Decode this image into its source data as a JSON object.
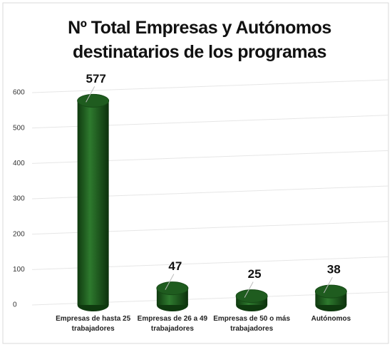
{
  "chart_data": {
    "type": "cylinder-bar",
    "title": "Nº Total Empresas y Autónomos destinatarios de los programas",
    "categories": [
      "Empresas de hasta 25 trabajadores",
      "Empresas de 26 a 49 trabajadores",
      "Empresas de 50 o más trabajadores",
      "Autónomos"
    ],
    "values": [
      577,
      47,
      25,
      38
    ],
    "color": "#1f5c1f",
    "ylim": [
      0,
      600
    ],
    "yticks": [
      0,
      100,
      200,
      300,
      400,
      500,
      600
    ],
    "grid": true
  }
}
